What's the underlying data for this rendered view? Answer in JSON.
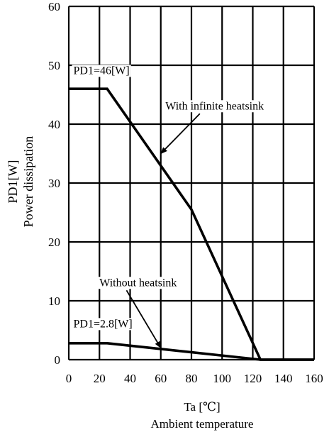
{
  "chart_data": {
    "type": "line",
    "xlim": [
      0,
      160
    ],
    "ylim": [
      0,
      60
    ],
    "x_ticks": [
      "0",
      "20",
      "40",
      "60",
      "80",
      "100",
      "120",
      "140",
      "160"
    ],
    "y_ticks": [
      "0",
      "10",
      "20",
      "30",
      "40",
      "50",
      "60"
    ],
    "grid": true,
    "xlabel": "Ta [℃]",
    "xlabel2": "Ambient temperature",
    "ylabel": "PD1[W]",
    "ylabel2": "Power dissipation",
    "series": [
      {
        "name": "With infinite heatsink",
        "points": [
          [
            0,
            46
          ],
          [
            25,
            46
          ],
          [
            80,
            25.5
          ],
          [
            125,
            0
          ],
          [
            160,
            0
          ]
        ]
      },
      {
        "name": "Without heatsink",
        "points": [
          [
            0,
            2.8
          ],
          [
            25,
            2.8
          ],
          [
            125,
            0
          ],
          [
            160,
            0
          ]
        ]
      }
    ],
    "annotations": [
      {
        "text": "PD1=46[W]",
        "x": 3,
        "y": 48.5
      },
      {
        "text": "With infinite heatsink",
        "x": 63,
        "y": 42.5,
        "arrow_to": [
          60,
          35
        ]
      },
      {
        "text": "Without heatsink",
        "x": 20,
        "y": 12.5,
        "arrow_to": [
          60,
          2
        ]
      },
      {
        "text": "PD1=2.8[W]",
        "x": 3,
        "y": 5.5
      }
    ]
  }
}
